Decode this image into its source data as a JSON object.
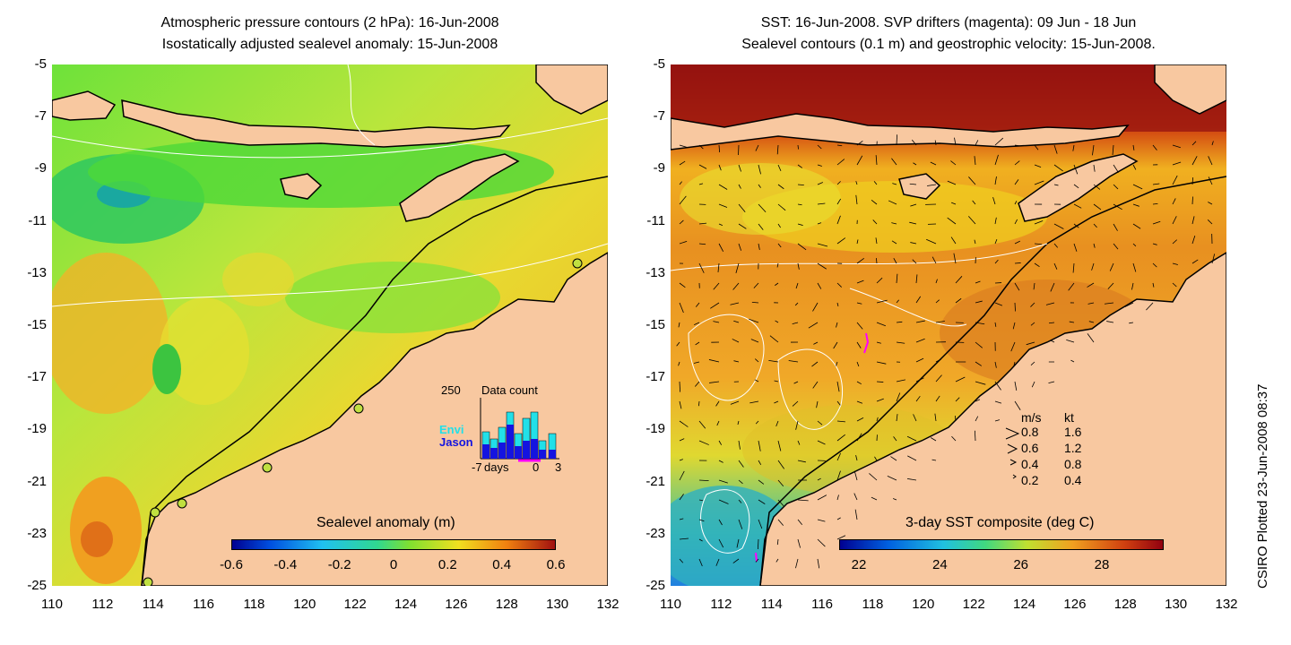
{
  "left_panel": {
    "title_line1": "Atmospheric pressure contours (2 hPa): 16-Jun-2008",
    "title_line2": "Isostatically adjusted sealevel anomaly: 15-Jun-2008",
    "colorbar_title": "Sealevel anomaly (m)",
    "colorbar_ticks": [
      "-0.6",
      "-0.4",
      "-0.2",
      "0",
      "0.2",
      "0.4",
      "0.6"
    ],
    "inset": {
      "max_label": "250",
      "title": "Data count",
      "series": [
        "Envi",
        "Jason"
      ],
      "series_colors": [
        "#22e0e8",
        "#1414e0"
      ],
      "xticks": [
        "-7",
        "days",
        "0",
        "3"
      ]
    }
  },
  "right_panel": {
    "title_line1": "SST: 16-Jun-2008. SVP drifters (magenta): 09 Jun - 18 Jun",
    "title_line2": "Sealevel contours (0.1 m) and geostrophic velocity: 15-Jun-2008.",
    "colorbar_title": "3-day SST composite (deg C)",
    "colorbar_ticks": [
      "22",
      "24",
      "26",
      "28"
    ],
    "velocity_legend": {
      "header_ms": "m/s",
      "header_kt": "kt",
      "rows": [
        {
          "ms": "0.8",
          "kt": "1.6"
        },
        {
          "ms": "0.6",
          "kt": "1.2"
        },
        {
          "ms": "0.4",
          "kt": "0.8"
        },
        {
          "ms": "0.2",
          "kt": "0.4"
        }
      ]
    }
  },
  "axes": {
    "y_ticks": [
      "-5",
      "-7",
      "-9",
      "-11",
      "-13",
      "-15",
      "-17",
      "-19",
      "-21",
      "-23",
      "-25"
    ],
    "x_ticks": [
      "110",
      "112",
      "114",
      "116",
      "118",
      "120",
      "122",
      "124",
      "126",
      "128",
      "130",
      "132"
    ],
    "lon_range": [
      110,
      132
    ],
    "lat_range": [
      -25,
      -5
    ]
  },
  "credit": "CSIRO Plotted 23-Jun-2008 08:37",
  "colors": {
    "land": "#f8c8a0",
    "coast": "#000000",
    "contour": "#ffffff",
    "drifter": "#ff00ff"
  }
}
